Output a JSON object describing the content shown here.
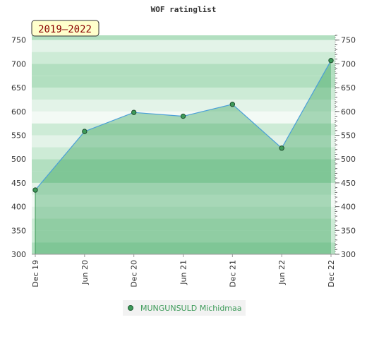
{
  "chart_data": {
    "type": "area",
    "title": "WOF ratinglist",
    "badge": "2019–2022",
    "categories": [
      "Dec 19",
      "Jun 20",
      "Dec 20",
      "Jun 21",
      "Dec 21",
      "Jun 22",
      "Dec 22"
    ],
    "series": [
      {
        "name": "MUNGUNSULD Michidmaa",
        "values": [
          435,
          558,
          598,
          590,
          615,
          523,
          707
        ]
      }
    ],
    "yticks": [
      300,
      350,
      400,
      450,
      500,
      550,
      600,
      650,
      700,
      750
    ],
    "ylim": [
      300,
      760
    ],
    "grid": true,
    "legend_position": "bottom-center",
    "colors": {
      "line": "#4a9fd8",
      "marker": "#3e9b5a",
      "area": "#2e9e52",
      "legend_text": "#3e9b5a",
      "badge_bg": "#ffffcc",
      "band_dark": "#b2dfc0",
      "band_mid": "#cdebd6",
      "band_light": "#e3f3e8",
      "band_white": "#f3faf5"
    }
  }
}
